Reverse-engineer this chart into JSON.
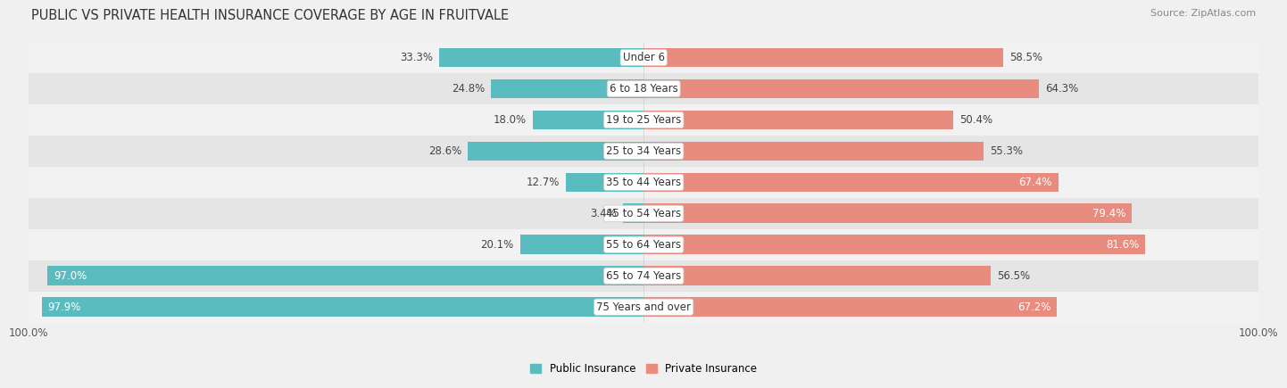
{
  "title": "PUBLIC VS PRIVATE HEALTH INSURANCE COVERAGE BY AGE IN FRUITVALE",
  "source": "Source: ZipAtlas.com",
  "categories": [
    "Under 6",
    "6 to 18 Years",
    "19 to 25 Years",
    "25 to 34 Years",
    "35 to 44 Years",
    "45 to 54 Years",
    "55 to 64 Years",
    "65 to 74 Years",
    "75 Years and over"
  ],
  "public_values": [
    33.3,
    24.8,
    18.0,
    28.6,
    12.7,
    3.4,
    20.1,
    97.0,
    97.9
  ],
  "private_values": [
    58.5,
    64.3,
    50.4,
    55.3,
    67.4,
    79.4,
    81.6,
    56.5,
    67.2
  ],
  "public_color": "#5bbcbf",
  "private_color": "#e88c80",
  "public_label": "Public Insurance",
  "private_label": "Private Insurance",
  "row_bg_light": "#f2f2f2",
  "row_bg_dark": "#e5e5e5",
  "label_fontsize": 8.5,
  "title_fontsize": 10.5,
  "source_fontsize": 8,
  "legend_fontsize": 8.5,
  "max_value": 100.0,
  "bar_height": 0.62,
  "axis_tick_labels": [
    "100.0%",
    "100.0%"
  ],
  "value_label_color_dark": "#444444",
  "value_label_color_white": "#ffffff",
  "category_label_bg": "#ffffff"
}
